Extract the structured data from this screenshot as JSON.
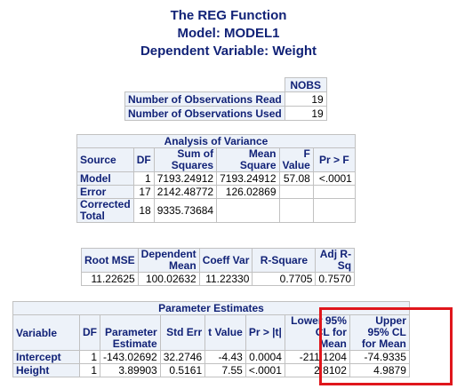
{
  "titles": {
    "line1": "The REG Function",
    "line2": "Model: MODEL1",
    "line3": "Dependent Variable: Weight"
  },
  "nobs": {
    "header": "NOBS",
    "rows": [
      {
        "label": "Number of Observations Read",
        "value": "19"
      },
      {
        "label": "Number of Observations Used",
        "value": "19"
      }
    ]
  },
  "anova": {
    "caption": "Analysis of Variance",
    "headers": {
      "source": "Source",
      "df": "DF",
      "ss": "Sum of Squares",
      "ms": "Mean Square",
      "f": "F Value",
      "p": "Pr > F"
    },
    "rows": [
      {
        "source": "Model",
        "df": "1",
        "ss": "7193.24912",
        "ms": "7193.24912",
        "f": "57.08",
        "p": "<.0001"
      },
      {
        "source": "Error",
        "df": "17",
        "ss": "2142.48772",
        "ms": "126.02869",
        "f": "",
        "p": ""
      },
      {
        "source": "Corrected Total",
        "df": "18",
        "ss": "9335.73684",
        "ms": "",
        "f": "",
        "p": ""
      }
    ]
  },
  "fit": {
    "headers": {
      "rmse": "Root MSE",
      "dep_mean": "Dependent Mean",
      "cv": "Coeff Var",
      "rsq": "R-Square",
      "adjrsq": "Adj R-Sq"
    },
    "values": {
      "rmse": "11.22625",
      "dep_mean": "100.02632",
      "cv": "11.22330",
      "rsq": "0.7705",
      "adjrsq": "0.7570"
    }
  },
  "parameter_estimates": {
    "caption": "Parameter Estimates",
    "headers": {
      "variable": "Variable",
      "df": "DF",
      "estimate": "Parameter Estimate",
      "stderr": "Std Err",
      "t": "t Value",
      "p": "Pr > |t|",
      "lcl": "Lower 95% CL for Mean",
      "ucl": "Upper 95% CL for Mean"
    },
    "rows": [
      {
        "variable": "Intercept",
        "df": "1",
        "estimate": "-143.02692",
        "stderr": "32.2746",
        "t": "-4.43",
        "p": "0.0004",
        "lcl": "-211.1204",
        "ucl": "-74.9335"
      },
      {
        "variable": "Height",
        "df": "1",
        "estimate": "3.89903",
        "stderr": "0.5161",
        "t": "7.55",
        "p": "<.0001",
        "lcl": "2.8102",
        "ucl": "4.9879"
      }
    ]
  },
  "colors": {
    "header_bg": "#edf2f9",
    "title_text": "#112277",
    "highlight": "#e0161c",
    "border": "#c1c1c1"
  }
}
